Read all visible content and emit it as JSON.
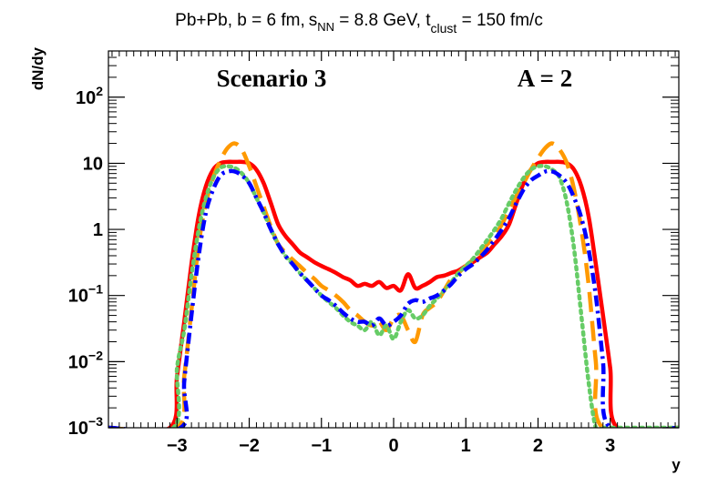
{
  "chart_data": {
    "type": "line",
    "title_parts": {
      "pre": "Pb+Pb, b = 6 fm,",
      "s": "s",
      "s_sub": "NN",
      "mid": " = 8.8 GeV, t",
      "t_sub": "clust",
      "post": " = 150 fm/c"
    },
    "xlabel": "y",
    "ylabel": "dN/dy",
    "xlim": [
      -3.95,
      3.95
    ],
    "ylim": [
      0.001,
      500
    ],
    "yscale": "log",
    "x_ticks": [
      -3,
      -2,
      -1,
      0,
      1,
      2,
      3
    ],
    "x_tick_labels": [
      "−3",
      "−2",
      "−1",
      "0",
      "1",
      "2",
      "3"
    ],
    "y_ticks": [
      0.001,
      0.01,
      0.1,
      1,
      10,
      100
    ],
    "y_tick_labels": [
      {
        "base": "10",
        "exp": "−3"
      },
      {
        "base": "10",
        "exp": "−2"
      },
      {
        "base": "10",
        "exp": "−1"
      },
      {
        "base": "1",
        "exp": ""
      },
      {
        "base": "10",
        "exp": ""
      },
      {
        "base": "10",
        "exp": "2"
      }
    ],
    "annotations": {
      "left": "Scenario 3",
      "right": "A = 2"
    },
    "grid": false,
    "series": [
      {
        "name": "red-solid",
        "color": "#ff0000",
        "style": "solid",
        "x": [
          -3.95,
          -3.1,
          -3.0,
          -2.9,
          -2.8,
          -2.7,
          -2.6,
          -2.5,
          -2.4,
          -2.3,
          -2.2,
          -2.1,
          -2.0,
          -1.9,
          -1.8,
          -1.7,
          -1.6,
          -1.5,
          -1.4,
          -1.3,
          -1.2,
          -1.1,
          -1.0,
          -0.9,
          -0.8,
          -0.7,
          -0.6,
          -0.5,
          -0.4,
          -0.3,
          -0.2,
          -0.1,
          0.0,
          0.1,
          0.2,
          0.3,
          0.4,
          0.5,
          0.6,
          0.7,
          0.8,
          0.9,
          1.0,
          1.1,
          1.2,
          1.3,
          1.4,
          1.5,
          1.6,
          1.7,
          1.8,
          1.9,
          2.0,
          2.1,
          2.2,
          2.3,
          2.4,
          2.5,
          2.6,
          2.7,
          2.8,
          2.9,
          3.0,
          3.1,
          3.95
        ],
        "y": [
          0.001,
          0.001,
          0.006,
          0.04,
          0.3,
          1.6,
          4.5,
          8.0,
          10.0,
          10.5,
          10.5,
          10.5,
          10.0,
          8.0,
          5.0,
          2.5,
          1.2,
          0.8,
          0.6,
          0.45,
          0.38,
          0.32,
          0.28,
          0.25,
          0.22,
          0.19,
          0.17,
          0.14,
          0.15,
          0.14,
          0.16,
          0.13,
          0.14,
          0.12,
          0.21,
          0.13,
          0.14,
          0.16,
          0.19,
          0.2,
          0.22,
          0.24,
          0.28,
          0.32,
          0.38,
          0.45,
          0.6,
          0.8,
          1.2,
          2.5,
          5.0,
          8.0,
          10.0,
          10.5,
          10.5,
          10.5,
          10.0,
          8.0,
          4.5,
          1.6,
          0.3,
          0.05,
          0.008,
          0.001,
          0.001
        ]
      },
      {
        "name": "orange-long-dash",
        "color": "#ff9900",
        "style": "longdash",
        "x": [
          -3.95,
          -3.0,
          -2.9,
          -2.8,
          -2.7,
          -2.6,
          -2.5,
          -2.4,
          -2.3,
          -2.2,
          -2.1,
          -2.0,
          -1.9,
          -1.8,
          -1.7,
          -1.6,
          -1.5,
          -1.4,
          -1.3,
          -1.2,
          -1.1,
          -1.0,
          -0.9,
          -0.8,
          -0.7,
          -0.6,
          -0.5,
          -0.4,
          -0.3,
          -0.2,
          -0.1,
          0.0,
          0.1,
          0.2,
          0.3,
          0.4,
          0.5,
          0.6,
          0.7,
          0.8,
          0.9,
          1.0,
          1.1,
          1.2,
          1.3,
          1.4,
          1.5,
          1.6,
          1.7,
          1.8,
          1.9,
          2.0,
          2.1,
          2.2,
          2.3,
          2.4,
          2.5,
          2.6,
          2.7,
          2.8,
          2.9,
          3.95
        ],
        "y": [
          0.001,
          0.001,
          0.006,
          0.06,
          0.6,
          2.5,
          6.0,
          11.0,
          17.0,
          20.0,
          16.0,
          9.0,
          4.5,
          2.2,
          1.1,
          0.6,
          0.45,
          0.35,
          0.28,
          0.22,
          0.18,
          0.14,
          0.12,
          0.1,
          0.08,
          0.06,
          0.05,
          0.04,
          0.035,
          0.04,
          0.03,
          0.045,
          0.05,
          0.03,
          0.02,
          0.05,
          0.065,
          0.08,
          0.12,
          0.18,
          0.22,
          0.28,
          0.35,
          0.45,
          0.6,
          0.8,
          1.2,
          2.0,
          3.2,
          5.0,
          8.0,
          12.0,
          17.0,
          20.0,
          16.0,
          10.0,
          4.0,
          1.0,
          0.15,
          0.01,
          0.001,
          0.001
        ]
      },
      {
        "name": "green-dotted",
        "color": "#66cc66",
        "style": "dotted",
        "x": [
          -3.95,
          -3.05,
          -3.0,
          -2.9,
          -2.8,
          -2.7,
          -2.6,
          -2.5,
          -2.4,
          -2.3,
          -2.2,
          -2.1,
          -2.0,
          -1.9,
          -1.8,
          -1.7,
          -1.6,
          -1.5,
          -1.4,
          -1.3,
          -1.2,
          -1.1,
          -1.0,
          -0.9,
          -0.8,
          -0.7,
          -0.6,
          -0.5,
          -0.4,
          -0.3,
          -0.2,
          -0.1,
          0.0,
          0.1,
          0.2,
          0.3,
          0.4,
          0.5,
          0.6,
          0.7,
          0.8,
          0.9,
          1.0,
          1.1,
          1.2,
          1.3,
          1.4,
          1.5,
          1.6,
          1.7,
          1.8,
          1.9,
          2.0,
          2.1,
          2.2,
          2.3,
          2.4,
          2.5,
          2.6,
          2.7,
          2.8,
          2.9,
          3.0,
          3.95
        ],
        "y": [
          0.001,
          0.001,
          0.008,
          0.03,
          0.2,
          1.0,
          3.0,
          6.0,
          8.5,
          9.0,
          8.5,
          7.0,
          5.0,
          3.0,
          1.8,
          1.0,
          0.6,
          0.4,
          0.3,
          0.22,
          0.17,
          0.13,
          0.1,
          0.08,
          0.065,
          0.05,
          0.04,
          0.035,
          0.03,
          0.04,
          0.025,
          0.035,
          0.022,
          0.04,
          0.06,
          0.045,
          0.05,
          0.07,
          0.09,
          0.12,
          0.16,
          0.22,
          0.28,
          0.36,
          0.5,
          0.7,
          1.0,
          1.5,
          2.5,
          4.0,
          6.0,
          8.0,
          9.0,
          9.0,
          8.0,
          6.0,
          2.5,
          0.5,
          0.05,
          0.005,
          0.001,
          0.001,
          0.001,
          0.001
        ]
      },
      {
        "name": "blue-dash-dot",
        "color": "#0000ff",
        "style": "dashdot",
        "x": [
          -3.95,
          -2.95,
          -2.9,
          -2.8,
          -2.7,
          -2.6,
          -2.5,
          -2.4,
          -2.3,
          -2.2,
          -2.1,
          -2.0,
          -1.9,
          -1.8,
          -1.7,
          -1.6,
          -1.5,
          -1.4,
          -1.3,
          -1.2,
          -1.1,
          -1.0,
          -0.9,
          -0.8,
          -0.7,
          -0.6,
          -0.5,
          -0.4,
          -0.3,
          -0.2,
          -0.1,
          0.0,
          0.1,
          0.2,
          0.3,
          0.4,
          0.5,
          0.6,
          0.7,
          0.8,
          0.9,
          1.0,
          1.1,
          1.2,
          1.3,
          1.4,
          1.5,
          1.6,
          1.7,
          1.8,
          1.9,
          2.0,
          2.1,
          2.2,
          2.3,
          2.4,
          2.5,
          2.6,
          2.7,
          2.8,
          2.9,
          3.0,
          3.95
        ],
        "y": [
          0.001,
          0.001,
          0.005,
          0.05,
          0.4,
          1.8,
          4.0,
          6.5,
          7.5,
          7.5,
          6.5,
          5.0,
          3.0,
          1.8,
          1.0,
          0.6,
          0.4,
          0.3,
          0.22,
          0.17,
          0.13,
          0.1,
          0.085,
          0.07,
          0.055,
          0.045,
          0.04,
          0.04,
          0.035,
          0.045,
          0.035,
          0.04,
          0.05,
          0.075,
          0.085,
          0.08,
          0.09,
          0.1,
          0.12,
          0.15,
          0.2,
          0.25,
          0.3,
          0.38,
          0.5,
          0.7,
          1.0,
          1.5,
          2.5,
          4.0,
          5.5,
          6.5,
          7.5,
          7.5,
          6.5,
          5.0,
          3.0,
          1.5,
          0.5,
          0.1,
          0.01,
          0.001,
          0.001
        ]
      }
    ]
  }
}
